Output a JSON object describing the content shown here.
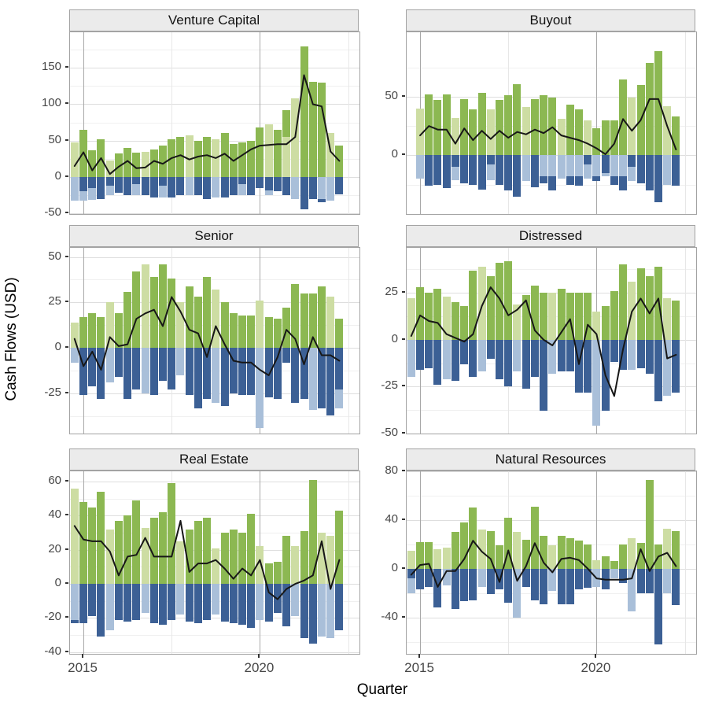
{
  "figure": {
    "x_axis_title": "Quarter",
    "y_axis_title": "Cash Flows (USD)",
    "x_tick_labels": [
      "2015",
      "2020"
    ]
  },
  "colors": {
    "pos_light": "#cddda3",
    "pos_dark": "#8cb852",
    "neg_light": "#a9bfd9",
    "neg_dark": "#3c6095",
    "net_line": "#171717",
    "grid_major_h": "#dedede",
    "grid_minor_h": "#f0f0f0",
    "grid_major_v": "#a8a8a8",
    "grid_minor_v": "#e7e7e7",
    "panel_border": "#a3a3a3",
    "strip_bg": "#ebebeb",
    "axis_text": "#474747"
  },
  "chart_data": {
    "type": "bar",
    "description": "Faceted quarterly cash flow chart: positive distribution bars (light/dark green overlaid from zero), negative capital-call bars (light/dark blue overlaid from zero), black net cash flow line. Free y scales per facet.",
    "x_start": 2014.75,
    "x_step_years": 0.25,
    "n_quarters": 31,
    "x_domain": [
      2014.62,
      2022.82
    ],
    "x_major_gridlines": [
      2015,
      2020
    ],
    "x_minor_gridlines": [
      2017.5,
      2022.5
    ],
    "x_ticks": [
      2015,
      2020
    ],
    "xlabel": "Quarter",
    "ylabel": "Cash Flows (USD)",
    "legend": "none",
    "panels": [
      {
        "title": "Venture Capital",
        "y_domain": [
          -51,
          199
        ],
        "y_ticks": [
          150,
          100,
          50,
          0,
          -50
        ],
        "series": {
          "pos_light": [
            47,
            0,
            0,
            0,
            23,
            0,
            0,
            0,
            35,
            0,
            0,
            0,
            0,
            57,
            0,
            0,
            52,
            0,
            0,
            0,
            0,
            0,
            72,
            0,
            55,
            108,
            0,
            0,
            0,
            61,
            0
          ],
          "pos_dark": [
            0,
            65,
            37,
            52,
            0,
            32,
            40,
            33,
            0,
            38,
            43,
            52,
            55,
            0,
            50,
            55,
            0,
            60,
            45,
            48,
            50,
            68,
            0,
            65,
            92,
            0,
            180,
            131,
            130,
            0,
            43
          ],
          "neg_light": [
            33,
            33,
            32,
            0,
            25,
            0,
            0,
            25,
            0,
            0,
            28,
            0,
            0,
            25,
            0,
            0,
            28,
            0,
            0,
            25,
            0,
            0,
            25,
            0,
            0,
            30,
            0,
            0,
            30,
            33,
            0
          ],
          "neg_dark": [
            0,
            20,
            15,
            30,
            12,
            22,
            25,
            10,
            25,
            28,
            12,
            28,
            25,
            0,
            25,
            30,
            0,
            28,
            25,
            10,
            25,
            15,
            18,
            20,
            25,
            0,
            45,
            30,
            35,
            0,
            24
          ],
          "net": [
            15,
            34,
            9,
            26,
            4,
            14,
            22,
            12,
            13,
            22,
            18,
            26,
            30,
            24,
            28,
            30,
            26,
            32,
            22,
            30,
            38,
            43,
            44,
            45,
            45,
            55,
            140,
            100,
            97,
            35,
            22
          ]
        }
      },
      {
        "title": "Buyout",
        "y_domain": [
          -50,
          105
        ],
        "y_ticks": [
          50,
          0
        ],
        "series": {
          "pos_light": [
            0,
            40,
            0,
            0,
            0,
            32,
            0,
            0,
            0,
            39,
            0,
            0,
            0,
            41,
            0,
            0,
            0,
            31,
            0,
            0,
            30,
            0,
            0,
            0,
            0,
            49,
            0,
            0,
            0,
            42,
            0
          ],
          "pos_dark": [
            0,
            0,
            52,
            47,
            52,
            0,
            48,
            39,
            53,
            0,
            47,
            51,
            61,
            0,
            48,
            51,
            49,
            0,
            43,
            39,
            0,
            23,
            30,
            30,
            65,
            0,
            60,
            79,
            89,
            0,
            33
          ],
          "neg_light": [
            0,
            20,
            0,
            0,
            0,
            21,
            0,
            0,
            0,
            21,
            0,
            0,
            0,
            22,
            0,
            18,
            18,
            20,
            18,
            18,
            20,
            18,
            18,
            18,
            18,
            22,
            0,
            0,
            0,
            25,
            0
          ],
          "neg_dark": [
            0,
            0,
            26,
            25,
            28,
            10,
            24,
            25,
            29,
            8,
            25,
            30,
            35,
            0,
            27,
            24,
            30,
            0,
            25,
            26,
            8,
            22,
            15,
            25,
            30,
            10,
            24,
            30,
            40,
            0,
            26
          ],
          "net": [
            null,
            17,
            25,
            22,
            22,
            10,
            23,
            13,
            21,
            14,
            21,
            15,
            20,
            18,
            22,
            19,
            24,
            17,
            15,
            13,
            10,
            6,
            1,
            10,
            31,
            21,
            30,
            48,
            48,
            25,
            5
          ]
        }
      },
      {
        "title": "Senior",
        "y_domain": [
          -47,
          55
        ],
        "y_ticks": [
          50,
          25,
          0,
          -25
        ],
        "series": {
          "pos_light": [
            14,
            0,
            0,
            0,
            25,
            0,
            0,
            0,
            46,
            0,
            0,
            0,
            25,
            0,
            0,
            0,
            32,
            0,
            0,
            0,
            0,
            26,
            0,
            0,
            0,
            0,
            0,
            0,
            0,
            28,
            0
          ],
          "pos_dark": [
            0,
            17,
            19,
            17,
            0,
            19,
            31,
            42,
            0,
            39,
            46,
            38,
            0,
            34,
            28,
            39,
            0,
            25,
            19,
            18,
            18,
            0,
            17,
            16,
            22,
            35,
            30,
            30,
            34,
            0,
            16
          ],
          "neg_light": [
            8,
            0,
            0,
            0,
            19,
            0,
            0,
            0,
            25,
            0,
            0,
            0,
            15,
            0,
            0,
            0,
            30,
            0,
            0,
            0,
            0,
            44,
            0,
            0,
            0,
            0,
            0,
            34,
            0,
            0,
            33
          ],
          "neg_dark": [
            0,
            26,
            21,
            28,
            0,
            16,
            28,
            23,
            0,
            26,
            18,
            23,
            0,
            26,
            33,
            28,
            0,
            32,
            25,
            26,
            26,
            0,
            27,
            28,
            8,
            30,
            28,
            0,
            33,
            37,
            23
          ],
          "net": [
            5,
            -10,
            -2,
            -12,
            6,
            1,
            2,
            16,
            19,
            21,
            12,
            28,
            20,
            10,
            8,
            -5,
            12,
            2,
            -7,
            -8,
            -8,
            -12,
            -15,
            -5,
            10,
            5,
            -9,
            6,
            -4,
            -4,
            -7
          ]
        }
      },
      {
        "title": "Distressed",
        "y_domain": [
          -50,
          49
        ],
        "y_ticks": [
          25,
          0,
          -25,
          -50
        ],
        "series": {
          "pos_light": [
            22,
            0,
            0,
            0,
            23,
            0,
            0,
            0,
            39,
            0,
            0,
            0,
            19,
            0,
            0,
            0,
            25,
            0,
            0,
            0,
            0,
            15,
            0,
            0,
            0,
            31,
            0,
            0,
            0,
            22,
            0
          ],
          "pos_dark": [
            0,
            28,
            25,
            27,
            0,
            20,
            18,
            37,
            0,
            34,
            41,
            42,
            0,
            24,
            29,
            25,
            0,
            27,
            25,
            25,
            25,
            0,
            18,
            26,
            40,
            0,
            38,
            34,
            39,
            0,
            21
          ],
          "neg_light": [
            20,
            0,
            0,
            0,
            21,
            0,
            0,
            0,
            17,
            0,
            0,
            0,
            17,
            0,
            0,
            0,
            18,
            0,
            0,
            0,
            0,
            46,
            0,
            0,
            0,
            16,
            0,
            0,
            0,
            30,
            0
          ],
          "neg_dark": [
            0,
            16,
            15,
            24,
            0,
            22,
            13,
            20,
            0,
            10,
            21,
            25,
            0,
            26,
            20,
            38,
            0,
            17,
            17,
            28,
            28,
            0,
            38,
            12,
            16,
            0,
            15,
            18,
            33,
            0,
            28
          ],
          "net": [
            2,
            13,
            10,
            9,
            3,
            1,
            -1,
            3,
            18,
            28,
            22,
            13,
            16,
            21,
            5,
            0,
            -3,
            4,
            11,
            -13,
            8,
            3,
            -19,
            -30,
            -5,
            15,
            22,
            14,
            22,
            -10,
            -8
          ]
        }
      },
      {
        "title": "Real Estate",
        "y_domain": [
          -41,
          66
        ],
        "y_ticks": [
          60,
          40,
          20,
          0,
          -20,
          -40
        ],
        "series": {
          "pos_light": [
            56,
            0,
            0,
            0,
            32,
            0,
            0,
            0,
            33,
            0,
            0,
            0,
            25,
            0,
            0,
            0,
            21,
            0,
            0,
            0,
            0,
            22,
            0,
            0,
            0,
            22,
            0,
            0,
            30,
            28,
            0
          ],
          "pos_dark": [
            0,
            48,
            45,
            54,
            0,
            37,
            40,
            49,
            0,
            39,
            42,
            59,
            0,
            32,
            37,
            39,
            0,
            30,
            32,
            30,
            41,
            0,
            12,
            13,
            28,
            0,
            31,
            61,
            0,
            0,
            43
          ],
          "neg_light": [
            21,
            0,
            0,
            0,
            27,
            0,
            0,
            0,
            17,
            0,
            0,
            0,
            18,
            0,
            0,
            0,
            18,
            0,
            0,
            0,
            0,
            21,
            0,
            0,
            0,
            19,
            0,
            0,
            31,
            32,
            0
          ],
          "neg_dark": [
            23,
            23,
            19,
            31,
            0,
            21,
            22,
            21,
            0,
            23,
            24,
            21,
            0,
            22,
            23,
            21,
            0,
            22,
            23,
            24,
            26,
            0,
            22,
            17,
            25,
            0,
            32,
            35,
            0,
            0,
            27
          ],
          "net": [
            34,
            26,
            25,
            25,
            19,
            5,
            16,
            17,
            27,
            16,
            16,
            16,
            37,
            7,
            12,
            12,
            14,
            9,
            3,
            9,
            5,
            14,
            -5,
            -9,
            -3,
            0,
            2,
            5,
            25,
            -3,
            14
          ]
        }
      },
      {
        "title": "Natural Resources",
        "y_domain": [
          -70,
          80
        ],
        "y_ticks": [
          80,
          40,
          0,
          -40
        ],
        "series": {
          "pos_light": [
            15,
            0,
            0,
            16,
            17,
            0,
            0,
            0,
            32,
            0,
            0,
            0,
            30,
            0,
            0,
            0,
            19,
            0,
            0,
            0,
            0,
            7,
            0,
            0,
            0,
            25,
            0,
            0,
            0,
            33,
            0
          ],
          "pos_dark": [
            0,
            22,
            22,
            0,
            0,
            30,
            38,
            50,
            0,
            31,
            19,
            42,
            0,
            24,
            51,
            27,
            0,
            27,
            25,
            23,
            20,
            0,
            10,
            6,
            20,
            0,
            21,
            73,
            20,
            0,
            31
          ],
          "neg_light": [
            20,
            0,
            0,
            0,
            14,
            0,
            0,
            0,
            15,
            0,
            0,
            0,
            40,
            0,
            0,
            0,
            18,
            0,
            0,
            0,
            0,
            15,
            0,
            8,
            0,
            35,
            0,
            0,
            0,
            20,
            0
          ],
          "neg_dark": [
            8,
            17,
            15,
            32,
            0,
            33,
            27,
            26,
            0,
            21,
            17,
            28,
            0,
            15,
            26,
            29,
            0,
            29,
            29,
            17,
            16,
            0,
            17,
            0,
            12,
            0,
            20,
            20,
            62,
            0,
            30
          ],
          "net": [
            -5,
            3,
            4,
            -15,
            -2,
            -2,
            8,
            23,
            14,
            8,
            -11,
            15,
            -10,
            2,
            21,
            5,
            -3,
            8,
            9,
            7,
            0,
            -8,
            -9,
            -9,
            -9,
            -8,
            16,
            -2,
            10,
            13,
            2
          ]
        }
      }
    ]
  }
}
